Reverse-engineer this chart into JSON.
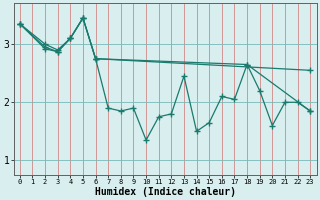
{
  "xlabel": "Humidex (Indice chaleur)",
  "xlim": [
    -0.5,
    23.5
  ],
  "ylim": [
    0.75,
    3.7
  ],
  "yticks": [
    1,
    2,
    3
  ],
  "xticks": [
    0,
    1,
    2,
    3,
    4,
    5,
    6,
    7,
    8,
    9,
    10,
    11,
    12,
    13,
    14,
    15,
    16,
    17,
    18,
    19,
    20,
    21,
    22,
    23
  ],
  "bg_color": "#d9eeee",
  "line_color": "#1a7a6e",
  "line1_x": [
    0,
    2,
    3,
    4,
    5,
    6,
    7,
    8,
    9,
    10,
    11,
    12,
    13,
    14,
    15,
    16,
    17,
    18,
    19,
    20,
    21,
    22,
    23
  ],
  "line1_y": [
    3.35,
    3.0,
    2.9,
    3.1,
    3.45,
    2.75,
    1.9,
    1.85,
    1.9,
    1.35,
    1.75,
    1.8,
    2.45,
    1.5,
    1.65,
    2.1,
    2.05,
    2.65,
    2.2,
    1.6,
    2.0,
    2.0,
    1.85
  ],
  "line2_x": [
    0,
    2,
    3,
    4,
    5,
    6,
    23
  ],
  "line2_y": [
    3.35,
    2.95,
    2.87,
    3.1,
    3.45,
    2.75,
    2.55
  ],
  "line3_x": [
    0,
    2,
    3,
    4,
    5,
    6,
    18,
    23
  ],
  "line3_y": [
    3.35,
    2.92,
    2.87,
    3.1,
    3.45,
    2.75,
    2.65,
    1.85
  ]
}
